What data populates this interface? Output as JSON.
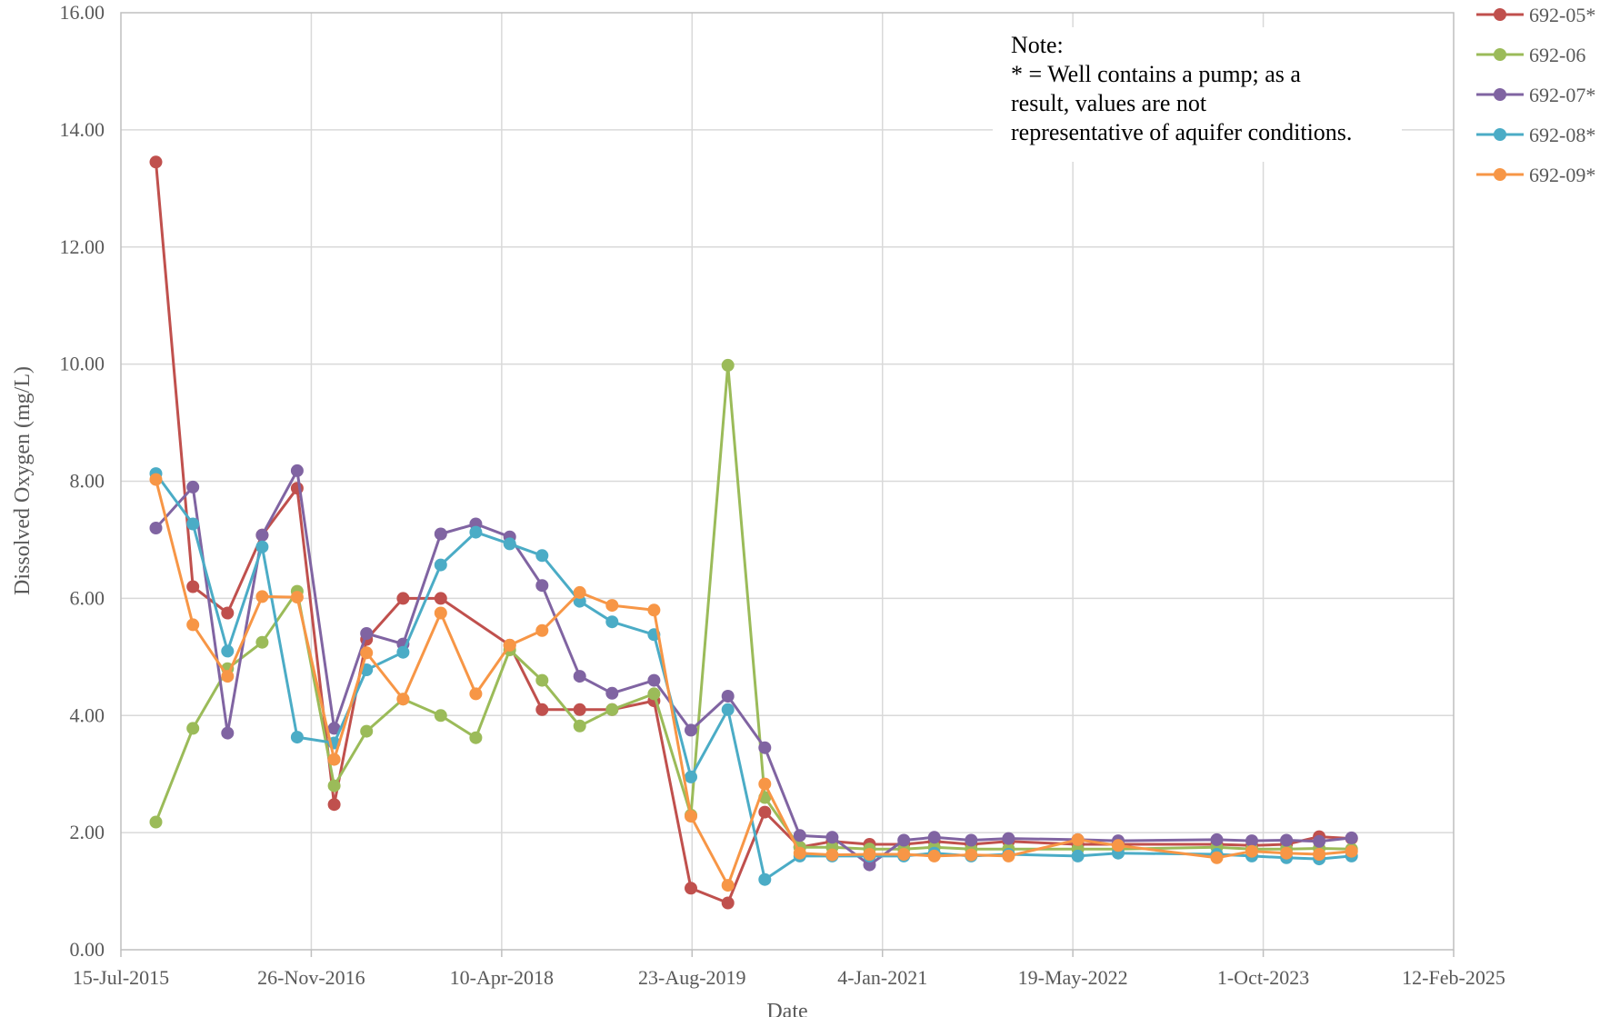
{
  "chart_data": {
    "type": "line",
    "title": "",
    "xlabel": "Date",
    "ylabel": "Dissolved Oxygen (mg/L)",
    "ylim": [
      0,
      16
    ],
    "xlim": [
      "2015-07-15",
      "2025-02-12"
    ],
    "y_ticks": [
      "0.00",
      "2.00",
      "4.00",
      "6.00",
      "8.00",
      "10.00",
      "12.00",
      "14.00",
      "16.00"
    ],
    "x_ticks": [
      {
        "date": "2015-07-15",
        "label": "15-Jul-2015"
      },
      {
        "date": "2016-11-26",
        "label": "26-Nov-2016"
      },
      {
        "date": "2018-04-10",
        "label": "10-Apr-2018"
      },
      {
        "date": "2019-08-23",
        "label": "23-Aug-2019"
      },
      {
        "date": "2021-01-04",
        "label": "4-Jan-2021"
      },
      {
        "date": "2022-05-19",
        "label": "19-May-2022"
      },
      {
        "date": "2023-10-01",
        "label": "1-Oct-2023"
      },
      {
        "date": "2025-02-12",
        "label": "12-Feb-2025"
      }
    ],
    "grid": true,
    "legend_position": "top-right",
    "note": [
      "Note:",
      "* = Well contains a pump; as a",
      "result, values are not",
      "representative of aquifer conditions."
    ],
    "series": [
      {
        "name": "692-05*",
        "color": "#C0504D",
        "points": [
          [
            "2015-10-15",
            13.45
          ],
          [
            "2016-01-20",
            6.2
          ],
          [
            "2016-04-20",
            5.75
          ],
          [
            "2016-07-20",
            7.08
          ],
          [
            "2016-10-20",
            7.88
          ],
          [
            "2017-01-25",
            2.48
          ],
          [
            "2017-04-20",
            5.3
          ],
          [
            "2017-07-25",
            6.0
          ],
          [
            "2017-11-01",
            6.0
          ],
          [
            "2018-05-01",
            5.2
          ],
          [
            "2018-07-25",
            4.1
          ],
          [
            "2018-11-01",
            4.1
          ],
          [
            "2019-01-25",
            4.1
          ],
          [
            "2019-05-15",
            4.25
          ],
          [
            "2019-08-20",
            1.05
          ],
          [
            "2019-11-25",
            0.8
          ],
          [
            "2020-03-01",
            2.35
          ],
          [
            "2020-06-01",
            1.75
          ],
          [
            "2020-08-25",
            1.85
          ],
          [
            "2020-12-01",
            1.8
          ],
          [
            "2021-03-01",
            1.8
          ],
          [
            "2021-05-20",
            1.85
          ],
          [
            "2021-08-25",
            1.8
          ],
          [
            "2021-12-01",
            1.85
          ],
          [
            "2022-06-01",
            1.8
          ],
          [
            "2022-09-15",
            1.8
          ],
          [
            "2023-06-01",
            1.8
          ],
          [
            "2023-09-01",
            1.78
          ],
          [
            "2023-12-01",
            1.8
          ],
          [
            "2024-02-25",
            1.93
          ],
          [
            "2024-05-20",
            1.9
          ]
        ]
      },
      {
        "name": "692-06",
        "color": "#9BBB59",
        "points": [
          [
            "2015-10-15",
            2.18
          ],
          [
            "2016-01-20",
            3.78
          ],
          [
            "2016-04-20",
            4.8
          ],
          [
            "2016-07-20",
            5.25
          ],
          [
            "2016-10-20",
            6.12
          ],
          [
            "2017-01-25",
            2.8
          ],
          [
            "2017-04-20",
            3.73
          ],
          [
            "2017-07-25",
            4.28
          ],
          [
            "2017-11-01",
            4.0
          ],
          [
            "2018-02-01",
            3.62
          ],
          [
            "2018-05-01",
            5.12
          ],
          [
            "2018-07-25",
            4.6
          ],
          [
            "2018-11-01",
            3.82
          ],
          [
            "2019-01-25",
            4.1
          ],
          [
            "2019-05-15",
            4.37
          ],
          [
            "2019-08-20",
            2.3
          ],
          [
            "2019-11-25",
            9.98
          ],
          [
            "2020-03-01",
            2.6
          ],
          [
            "2020-06-01",
            1.75
          ],
          [
            "2020-08-25",
            1.75
          ],
          [
            "2020-12-01",
            1.72
          ],
          [
            "2021-03-01",
            1.72
          ],
          [
            "2021-05-20",
            1.75
          ],
          [
            "2021-08-25",
            1.72
          ],
          [
            "2021-12-01",
            1.72
          ],
          [
            "2022-06-01",
            1.72
          ],
          [
            "2022-09-15",
            1.72
          ],
          [
            "2023-06-01",
            1.75
          ],
          [
            "2023-09-01",
            1.72
          ],
          [
            "2023-12-01",
            1.72
          ],
          [
            "2024-02-25",
            1.73
          ],
          [
            "2024-05-20",
            1.72
          ]
        ]
      },
      {
        "name": "692-07*",
        "color": "#8064A2",
        "points": [
          [
            "2015-10-15",
            7.2
          ],
          [
            "2016-01-20",
            7.9
          ],
          [
            "2016-04-20",
            3.7
          ],
          [
            "2016-07-20",
            7.08
          ],
          [
            "2016-10-20",
            8.18
          ],
          [
            "2017-01-25",
            3.78
          ],
          [
            "2017-04-20",
            5.4
          ],
          [
            "2017-07-25",
            5.22
          ],
          [
            "2017-11-01",
            7.1
          ],
          [
            "2018-02-01",
            7.27
          ],
          [
            "2018-05-01",
            7.05
          ],
          [
            "2018-07-25",
            6.22
          ],
          [
            "2018-11-01",
            4.67
          ],
          [
            "2019-01-25",
            4.38
          ],
          [
            "2019-05-15",
            4.6
          ],
          [
            "2019-08-20",
            3.75
          ],
          [
            "2019-11-25",
            4.33
          ],
          [
            "2020-03-01",
            3.45
          ],
          [
            "2020-06-01",
            1.95
          ],
          [
            "2020-08-25",
            1.92
          ],
          [
            "2020-12-01",
            1.45
          ],
          [
            "2021-03-01",
            1.87
          ],
          [
            "2021-05-20",
            1.92
          ],
          [
            "2021-08-25",
            1.87
          ],
          [
            "2021-12-01",
            1.9
          ],
          [
            "2022-06-01",
            1.88
          ],
          [
            "2022-09-15",
            1.86
          ],
          [
            "2023-06-01",
            1.88
          ],
          [
            "2023-09-01",
            1.86
          ],
          [
            "2023-12-01",
            1.87
          ],
          [
            "2024-02-25",
            1.85
          ],
          [
            "2024-05-20",
            1.91
          ]
        ]
      },
      {
        "name": "692-08*",
        "color": "#4BACC6",
        "points": [
          [
            "2015-10-15",
            8.13
          ],
          [
            "2016-01-20",
            7.27
          ],
          [
            "2016-04-20",
            5.1
          ],
          [
            "2016-07-20",
            6.88
          ],
          [
            "2016-10-20",
            3.63
          ],
          [
            "2017-01-25",
            3.53
          ],
          [
            "2017-04-20",
            4.78
          ],
          [
            "2017-07-25",
            5.08
          ],
          [
            "2017-11-01",
            6.57
          ],
          [
            "2018-02-01",
            7.13
          ],
          [
            "2018-05-01",
            6.93
          ],
          [
            "2018-07-25",
            6.73
          ],
          [
            "2018-11-01",
            5.95
          ],
          [
            "2019-01-25",
            5.6
          ],
          [
            "2019-05-15",
            5.38
          ],
          [
            "2019-08-20",
            2.95
          ],
          [
            "2019-11-25",
            4.1
          ],
          [
            "2020-03-01",
            1.2
          ],
          [
            "2020-06-01",
            1.6
          ],
          [
            "2020-08-25",
            1.6
          ],
          [
            "2020-12-01",
            1.6
          ],
          [
            "2021-03-01",
            1.6
          ],
          [
            "2021-05-20",
            1.65
          ],
          [
            "2021-08-25",
            1.6
          ],
          [
            "2021-12-01",
            1.63
          ],
          [
            "2022-06-01",
            1.6
          ],
          [
            "2022-09-15",
            1.65
          ],
          [
            "2023-06-01",
            1.63
          ],
          [
            "2023-09-01",
            1.6
          ],
          [
            "2023-12-01",
            1.57
          ],
          [
            "2024-02-25",
            1.55
          ],
          [
            "2024-05-20",
            1.6
          ]
        ]
      },
      {
        "name": "692-09*",
        "color": "#F79646",
        "points": [
          [
            "2015-10-15",
            8.03
          ],
          [
            "2016-01-20",
            5.55
          ],
          [
            "2016-04-20",
            4.67
          ],
          [
            "2016-07-20",
            6.03
          ],
          [
            "2016-10-20",
            6.02
          ],
          [
            "2017-01-25",
            3.25
          ],
          [
            "2017-04-20",
            5.07
          ],
          [
            "2017-07-25",
            4.28
          ],
          [
            "2017-11-01",
            5.75
          ],
          [
            "2018-02-01",
            4.37
          ],
          [
            "2018-05-01",
            5.2
          ],
          [
            "2018-07-25",
            5.45
          ],
          [
            "2018-11-01",
            6.1
          ],
          [
            "2019-01-25",
            5.88
          ],
          [
            "2019-05-15",
            5.8
          ],
          [
            "2019-08-20",
            2.28
          ],
          [
            "2019-11-25",
            1.1
          ],
          [
            "2020-03-01",
            2.83
          ],
          [
            "2020-06-01",
            1.65
          ],
          [
            "2020-08-25",
            1.62
          ],
          [
            "2020-12-01",
            1.63
          ],
          [
            "2021-03-01",
            1.63
          ],
          [
            "2021-05-20",
            1.6
          ],
          [
            "2021-08-25",
            1.62
          ],
          [
            "2021-12-01",
            1.6
          ],
          [
            "2022-06-01",
            1.88
          ],
          [
            "2022-09-15",
            1.78
          ],
          [
            "2023-06-01",
            1.57
          ],
          [
            "2023-09-01",
            1.68
          ],
          [
            "2023-12-01",
            1.65
          ],
          [
            "2024-02-25",
            1.63
          ],
          [
            "2024-05-20",
            1.68
          ]
        ]
      }
    ]
  }
}
